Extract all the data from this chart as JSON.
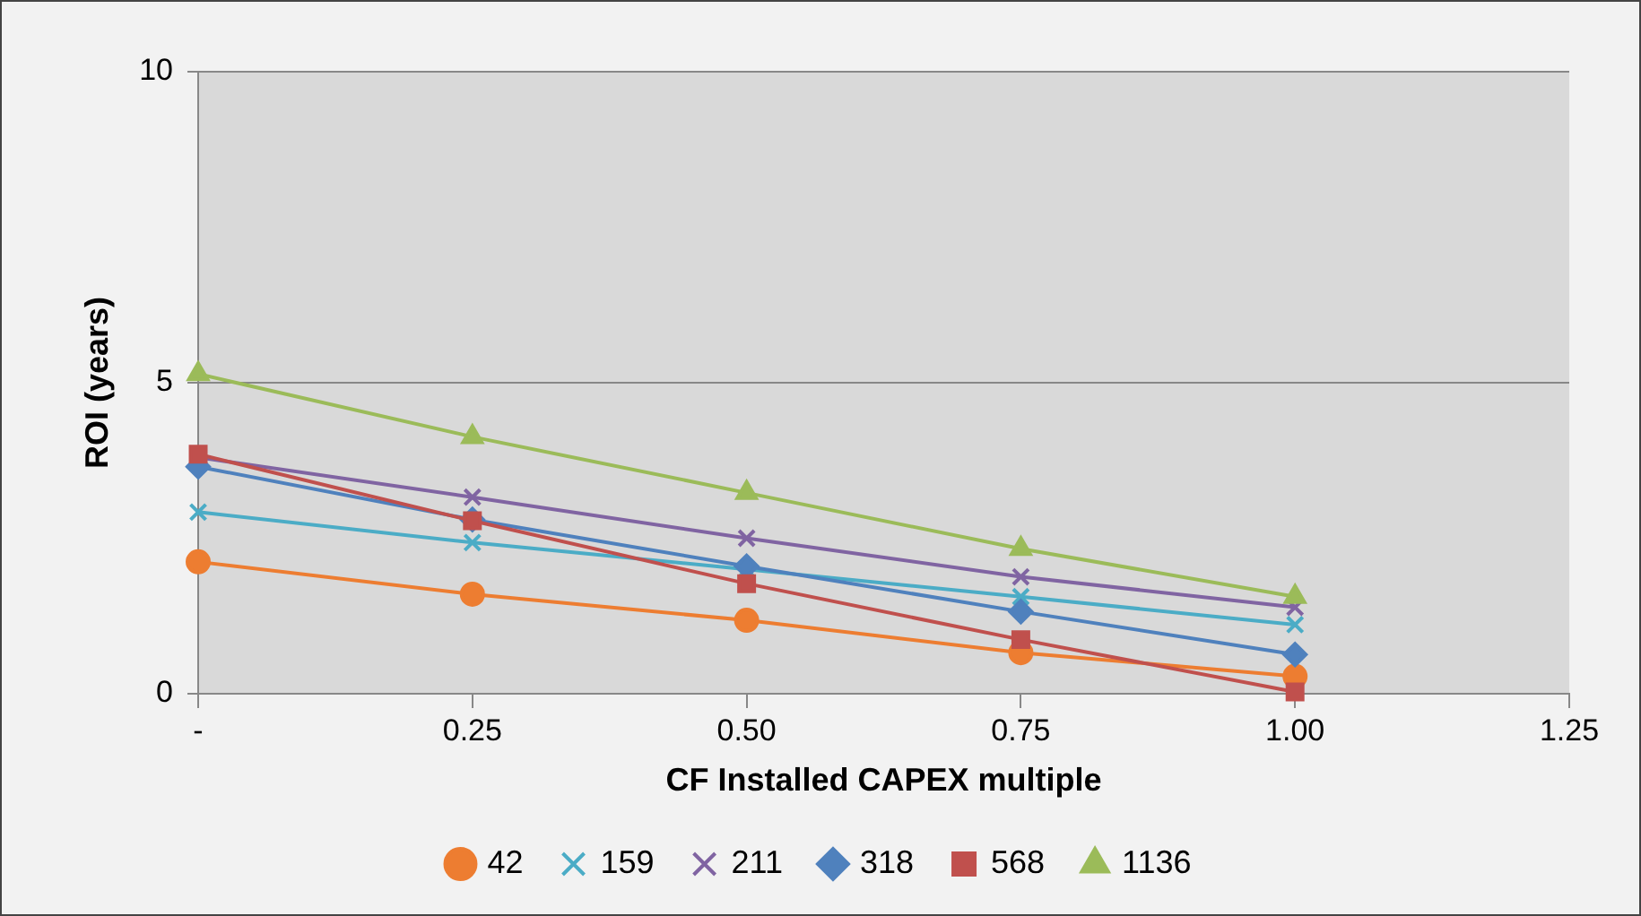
{
  "chart_data": {
    "type": "line",
    "xlabel": "CF Installed CAPEX multiple",
    "ylabel": "ROI (years)",
    "x": [
      0,
      0.25,
      0.5,
      0.75,
      1
    ],
    "xlim": [
      0,
      1.25
    ],
    "xticks": [
      {
        "value": 0,
        "label": "-"
      },
      {
        "value": 0.25,
        "label": "0.25"
      },
      {
        "value": 0.5,
        "label": "0.50"
      },
      {
        "value": 0.75,
        "label": "0.75"
      },
      {
        "value": 1,
        "label": "1.00"
      },
      {
        "value": 1.25,
        "label": "1.25"
      }
    ],
    "ylim": [
      0,
      10
    ],
    "yticks": [
      0,
      5,
      10
    ],
    "grid": "y",
    "legend": "bottom",
    "line_style": "solid",
    "series": [
      {
        "name": "42",
        "color": "#ed7d31",
        "marker": "circle",
        "values": [
          2.12,
          1.6,
          1.18,
          0.66,
          0.28
        ]
      },
      {
        "name": "159",
        "color": "#4bacc6",
        "marker": "cross",
        "values": [
          2.92,
          2.43,
          2.0,
          1.56,
          1.11
        ]
      },
      {
        "name": "211",
        "color": "#8064a2",
        "marker": "cross",
        "values": [
          3.8,
          3.16,
          2.5,
          1.88,
          1.39
        ]
      },
      {
        "name": "318",
        "color": "#4f81bd",
        "marker": "diamond",
        "values": [
          3.65,
          2.8,
          2.05,
          1.32,
          0.63
        ]
      },
      {
        "name": "568",
        "color": "#c0504d",
        "marker": "square",
        "values": [
          3.85,
          2.78,
          1.77,
          0.87,
          0.03
        ]
      },
      {
        "name": "1136",
        "color": "#9bbb59",
        "marker": "triangle",
        "values": [
          5.14,
          4.13,
          3.23,
          2.33,
          1.56
        ]
      }
    ]
  }
}
